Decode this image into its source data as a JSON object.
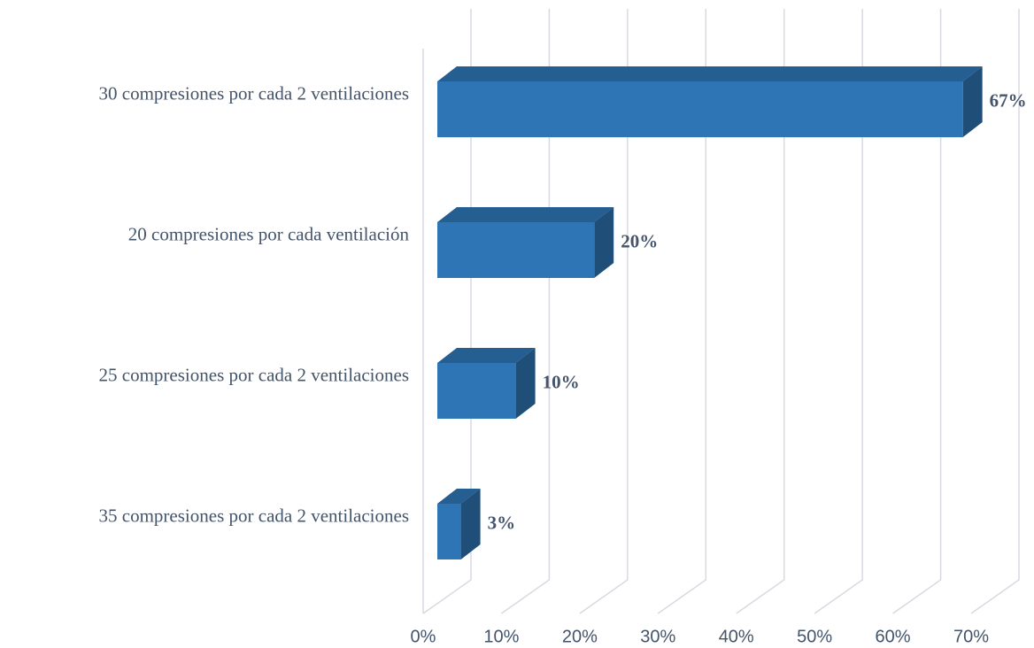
{
  "chart_data": {
    "type": "bar3d",
    "categories": [
      "30 compresiones por cada 2 ventilaciones",
      "20 compresiones por cada ventilación",
      "25 compresiones por cada 2 ventilaciones",
      "35 compresiones por cada 2 ventilaciones"
    ],
    "values": [
      67,
      20,
      10,
      3
    ],
    "value_labels": [
      "67%",
      "20%",
      "10%",
      "3%"
    ],
    "color": "#2e75b6",
    "xlim": [
      0,
      70
    ],
    "xticks": [
      {
        "value": 0,
        "label": "0%"
      },
      {
        "value": 10,
        "label": "10%"
      },
      {
        "value": 20,
        "label": "20%"
      },
      {
        "value": 30,
        "label": "30%"
      },
      {
        "value": 40,
        "label": "40%"
      },
      {
        "value": 50,
        "label": "50%"
      },
      {
        "value": 60,
        "label": "60%"
      },
      {
        "value": 70,
        "label": "70%"
      }
    ],
    "grid": true
  }
}
